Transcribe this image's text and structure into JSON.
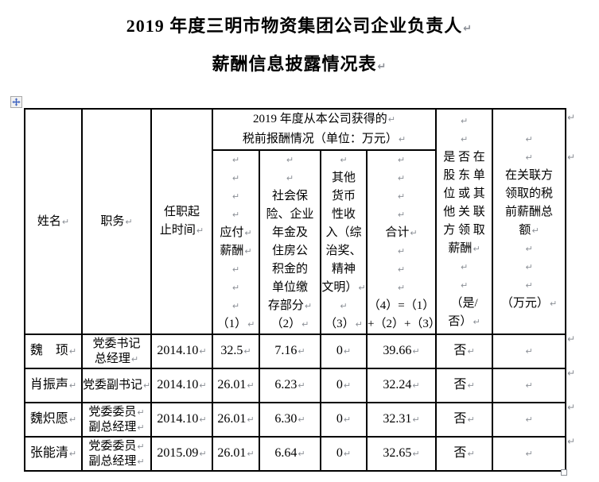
{
  "title": {
    "lines": [
      "2019 年度三明市物资集团公司企业负责人↵",
      "薪酬信息披露情况表↵"
    ]
  },
  "marks": {
    "paragraph": "↵"
  },
  "icons": {
    "table_move_handle": "four-way-move-arrow",
    "table_resize_handle": "small-square"
  },
  "colors": {
    "border": "#000000",
    "paragraph_mark": "#8b8f96",
    "move_handle_arrow": "#3f63c0",
    "text": "#000000",
    "background": "#ffffff"
  },
  "table": {
    "header": {
      "name": [
        "姓名↵"
      ],
      "position": [
        "职务↵"
      ],
      "term": [
        "任职起",
        "止时间↵"
      ],
      "group": [
        "2019 年度从本公司获得的↵",
        "税前报酬情况（单位：万元）↵"
      ],
      "pay": [
        "↵",
        "↵",
        "↵",
        "↵",
        "应付↵",
        "薪酬↵",
        "↵",
        "↵",
        "↵",
        "（1）↵"
      ],
      "social": [
        "↵",
        "↵",
        "社会保",
        "险、企业",
        "年金及",
        "住房公",
        "积金的",
        "单位缴",
        "存部分↵",
        "（2）↵"
      ],
      "other": [
        "↵",
        "其他",
        "货币",
        "性收",
        "入（综",
        "治奖、",
        "精神",
        "文明）↵",
        "↵",
        "（3）↵"
      ],
      "total": [
        "↵",
        "↵",
        "↵",
        "↵",
        "合计↵",
        "↵",
        "↵",
        "↵",
        "（4）=（1）",
        "+（2）+（3）↵"
      ],
      "related_flag": [
        "↵",
        "↵",
        "是 否 在",
        "股 东 单",
        "位 或 其",
        "他 关 联",
        "方 领 取",
        "薪酬↵",
        "↵",
        "↵",
        "（是/",
        "否）↵"
      ],
      "related_amount": [
        "↵",
        "↵",
        "在关联方",
        "领取的税",
        "前薪酬总",
        "额↵",
        "↵",
        "↵",
        "↵",
        "（万元）↵"
      ]
    },
    "rows": [
      {
        "name": "魏　顼↵",
        "position": [
          "党委书记",
          "总经理↵"
        ],
        "term": "2014.10↵",
        "pay": "32.5↵",
        "social": "7.16↵",
        "other": "0↵",
        "total": "39.66↵",
        "flag": "否↵",
        "related": "↵"
      },
      {
        "name": "肖振声↵",
        "position": [
          "党委副书记↵"
        ],
        "term": "2014.10↵",
        "pay": "26.01↵",
        "social": "6.23↵",
        "other": "0↵",
        "total": "32.24↵",
        "flag": "否↵",
        "related": "↵"
      },
      {
        "name": "魏炽愿↵",
        "position": [
          "党委委员↵",
          "副总经理↵"
        ],
        "term": "2014.10↵",
        "pay": "26.01↵",
        "social": "6.30↵",
        "other": "0↵",
        "total": "32.31↵",
        "flag": "否↵",
        "related": "↵"
      },
      {
        "name": "张能清↵",
        "position": [
          "党委委员↵",
          "副总经理↵"
        ],
        "term": "2015.09↵",
        "pay": "26.01↵",
        "social": "6.64↵",
        "other": "0↵",
        "total": "32.65↵",
        "flag": "否↵",
        "related": "↵"
      }
    ]
  }
}
